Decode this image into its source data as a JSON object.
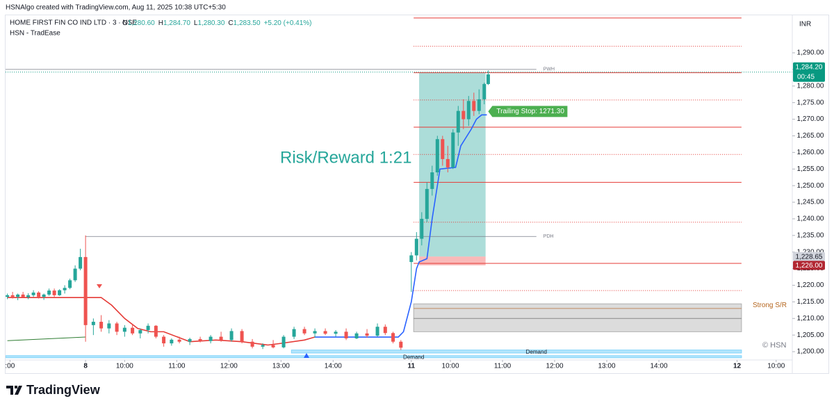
{
  "header": {
    "credit": "HSNAlgo created with TradingView.com, Aug 11, 2025 10:38 UTC+5:30",
    "brand": "TradingView"
  },
  "chart_data": {
    "type": "candlestick",
    "symbol": "HOME FIRST FIN CO IND LTD · 3 · NSE",
    "ohlc_labels": [
      "O",
      "1,280.60",
      "H",
      "1,284.70",
      "L",
      "1,280.30",
      "C",
      "1,283.50",
      "+5.20 (+0.41%)"
    ],
    "indicator": "HSN - TradEase",
    "currency": "INR",
    "annotation": "Risk/Reward 1:21",
    "watermark": "© HSN",
    "up_color": "#26a69a",
    "down_color": "#ef5350",
    "x": [
      -30,
      -28,
      -26,
      -24,
      -22,
      -20,
      -18,
      -16,
      -14,
      -12,
      -10,
      -8,
      -6,
      -4,
      -2,
      0,
      3,
      6,
      9,
      12,
      15,
      18,
      21,
      24,
      27,
      30,
      33,
      36,
      40,
      44,
      48,
      52,
      56,
      60,
      64,
      68,
      72,
      76,
      80,
      84,
      88,
      92,
      96,
      100,
      104,
      108,
      112,
      115,
      118,
      121,
      125,
      127,
      129,
      131,
      133,
      135,
      137,
      139,
      141,
      143,
      145,
      147,
      149,
      151,
      153,
      154.5
    ],
    "open": [
      1216.5,
      1217,
      1216.5,
      1217.2,
      1216.4,
      1217,
      1217.8,
      1216.5,
      1217.2,
      1218.4,
      1217,
      1218.5,
      1219.2,
      1221.5,
      1225,
      1228.5,
      1208,
      1209,
      1207,
      1208.5,
      1206,
      1207.2,
      1205.5,
      1206.5,
      1207.8,
      1204.5,
      1202.5,
      1203.6,
      1203,
      1203.8,
      1203.2,
      1204.5,
      1203.5,
      1206.2,
      1203,
      1201.5,
      1202,
      1201.3,
      1204.5,
      1206.8,
      1205.5,
      1206.2,
      1205.4,
      1206,
      1204,
      1205.5,
      1204.8,
      1207.5,
      1205.6,
      1203,
      1227,
      1229,
      1234,
      1240,
      1249,
      1254,
      1264,
      1258,
      1255.5,
      1266,
      1272.5,
      1270,
      1275.5,
      1272.5,
      1276,
      1280.6
    ],
    "high": [
      1217.5,
      1218,
      1217.5,
      1218,
      1217.6,
      1218.5,
      1218.2,
      1217.5,
      1219,
      1219,
      1218.8,
      1220,
      1222,
      1226,
      1231,
      1235,
      1210,
      1211,
      1209.5,
      1209,
      1208,
      1208,
      1207,
      1208.5,
      1208,
      1205,
      1204,
      1204.5,
      1204.2,
      1204.5,
      1205,
      1206,
      1207,
      1206.8,
      1203.8,
      1202.5,
      1203.5,
      1205,
      1207.5,
      1207.5,
      1207,
      1207,
      1206.5,
      1207,
      1206,
      1206.8,
      1208.5,
      1208.2,
      1206,
      1203.5,
      1230,
      1236,
      1242,
      1251,
      1256,
      1265,
      1265,
      1262,
      1267,
      1274,
      1276,
      1277,
      1278,
      1279,
      1281,
      1284.7
    ],
    "low": [
      1215.8,
      1216,
      1215.5,
      1216.2,
      1215.8,
      1216.5,
      1216,
      1215.6,
      1216.8,
      1216.5,
      1216.8,
      1217.5,
      1218.8,
      1221,
      1224.5,
      1203,
      1205,
      1206,
      1205.5,
      1205,
      1204.5,
      1205,
      1204,
      1205.5,
      1204,
      1201.5,
      1201.8,
      1202.5,
      1202,
      1202.8,
      1202.5,
      1203,
      1203,
      1202.5,
      1201,
      1200.8,
      1201,
      1201,
      1203.8,
      1205,
      1204.2,
      1205,
      1204.5,
      1203.5,
      1203.8,
      1204.2,
      1204.5,
      1205,
      1202.5,
      1200.5,
      1218,
      1227.5,
      1232,
      1239,
      1247,
      1253,
      1256,
      1254,
      1255,
      1262,
      1267,
      1268,
      1271,
      1271.5,
      1274.5,
      1280.3
    ],
    "close": [
      1217,
      1216.5,
      1217.2,
      1216.4,
      1217,
      1217.8,
      1216.5,
      1217.2,
      1218.4,
      1217,
      1218.5,
      1219.2,
      1221.5,
      1225,
      1228.5,
      1208,
      1209,
      1207,
      1208.5,
      1206,
      1207.2,
      1205.5,
      1206.5,
      1207.8,
      1204.5,
      1202.5,
      1203.6,
      1203,
      1203.8,
      1203.2,
      1204.5,
      1203.5,
      1206.2,
      1203,
      1201.5,
      1202,
      1201.3,
      1204.5,
      1206.8,
      1205.5,
      1206.2,
      1205.4,
      1206,
      1204,
      1205.5,
      1204.8,
      1207.5,
      1205.6,
      1203,
      1201.2,
      1229,
      1234,
      1240,
      1249,
      1254,
      1264,
      1258,
      1255.5,
      1266,
      1272.5,
      1270,
      1275.5,
      1272.5,
      1276,
      1280.6,
      1283.5
    ],
    "lines": [
      {
        "color": "#2e7d32",
        "x": [
          -30,
          0
        ],
        "values": [
          1203.3,
          1204.4
        ]
      },
      {
        "color": "#e53935",
        "x": [
          -30,
          0,
          6,
          10,
          15,
          20,
          25,
          30,
          40,
          50,
          60,
          70,
          75,
          84,
          88
        ],
        "values": [
          1216.3,
          1216.3,
          1216.3,
          1214,
          1210,
          1207,
          1206,
          1206,
          1203,
          1203.5,
          1203,
          1202,
          1202.5,
          1203.5,
          1204.4
        ]
      },
      {
        "color": "#2962ff",
        "x": [
          88,
          120,
          122,
          125,
          127,
          128,
          131,
          133,
          136,
          142,
          144,
          148,
          150,
          152,
          154
        ],
        "values": [
          1204.4,
          1204.4,
          1206,
          1215,
          1225,
          1227,
          1228,
          1240,
          1255,
          1255.5,
          1262,
          1267,
          1270,
          1271.3,
          1271.3
        ]
      }
    ],
    "levels_solid": [
      1300.5,
      1284,
      1267.6,
      1251,
      1226.6
    ],
    "levels_dotted": [
      1292,
      1275.8,
      1259.4,
      1239,
      1218.4
    ],
    "levels_x": [
      125.9,
      251.7
    ],
    "ref_lines": [
      {
        "label": "PWH",
        "value": 1285,
        "x": [
          -30.7,
          173
        ]
      },
      {
        "label": "PDH",
        "value": 1234.7,
        "x": [
          0,
          173
        ]
      }
    ],
    "position": {
      "x": [
        128,
        153.5
      ],
      "target": 1284,
      "entry": 1228.65,
      "stop": 1226
    },
    "trailing_stop": {
      "label": "Trailing Stop: 1271.30",
      "value": 1271.3,
      "x": 154.5
    },
    "sr_zone": {
      "label": "Strong S/R",
      "low": 1206,
      "high": 1214.4,
      "lines": [
        1213,
        1210
      ],
      "x": [
        125.9,
        251.7
      ]
    },
    "demand_zones": [
      {
        "label": "Demand",
        "low": 1199.6,
        "high": 1200.5,
        "x": [
          79,
          251.7
        ]
      },
      {
        "label": "Demand",
        "low": 1198.2,
        "high": 1198.8,
        "x": [
          -30.7,
          251.7
        ]
      }
    ],
    "price_tags": [
      {
        "value": 1284.2,
        "label": "1,284.20",
        "sub": "00:45",
        "color": "#089981"
      },
      {
        "value": 1228.65,
        "label": "1,228.65",
        "color": "#d1d4dc"
      },
      {
        "value": 1226,
        "label": "1,226.00",
        "color": "#b22833"
      }
    ],
    "xlim": [
      -30.7,
      271.2
    ],
    "ylim": [
      1197.5,
      1301.3
    ],
    "xticks": [
      {
        "value": -29,
        "label": ":00"
      },
      {
        "value": 0,
        "label": "8"
      },
      {
        "value": 15,
        "label": "10:00"
      },
      {
        "value": 35,
        "label": "11:00"
      },
      {
        "value": 55,
        "label": "12:00"
      },
      {
        "value": 75,
        "label": "13:00"
      },
      {
        "value": 95,
        "label": "14:00"
      },
      {
        "value": 125,
        "label": "11"
      },
      {
        "value": 140,
        "label": "10:00"
      },
      {
        "value": 160,
        "label": "11:00"
      },
      {
        "value": 180,
        "label": "12:00"
      },
      {
        "value": 200,
        "label": "13:00"
      },
      {
        "value": 220,
        "label": "14:00"
      },
      {
        "value": 250,
        "label": "12"
      },
      {
        "value": 265,
        "label": "10:00"
      }
    ],
    "yticks": [
      {
        "value": 1200,
        "label": "1,200.00"
      },
      {
        "value": 1205,
        "label": "1,205.00"
      },
      {
        "value": 1210,
        "label": "1,210.00"
      },
      {
        "value": 1215,
        "label": "1,215.00"
      },
      {
        "value": 1220,
        "label": "1,220.00"
      },
      {
        "value": 1225,
        "label": "1,225.00"
      },
      {
        "value": 1230,
        "label": "1,230.00"
      },
      {
        "value": 1235,
        "label": "1,235.00"
      },
      {
        "value": 1240,
        "label": "1,240.00"
      },
      {
        "value": 1245,
        "label": "1,245.00"
      },
      {
        "value": 1250,
        "label": "1,250.00"
      },
      {
        "value": 1255,
        "label": "1,255.00"
      },
      {
        "value": 1260,
        "label": "1,260.00"
      },
      {
        "value": 1265,
        "label": "1,265.00"
      },
      {
        "value": 1270,
        "label": "1,270.00"
      },
      {
        "value": 1275,
        "label": "1,275.00"
      },
      {
        "value": 1280,
        "label": "1,280.00"
      },
      {
        "value": 1285,
        "label": "1,285.00"
      },
      {
        "value": 1290,
        "label": "1,290.00"
      }
    ]
  }
}
